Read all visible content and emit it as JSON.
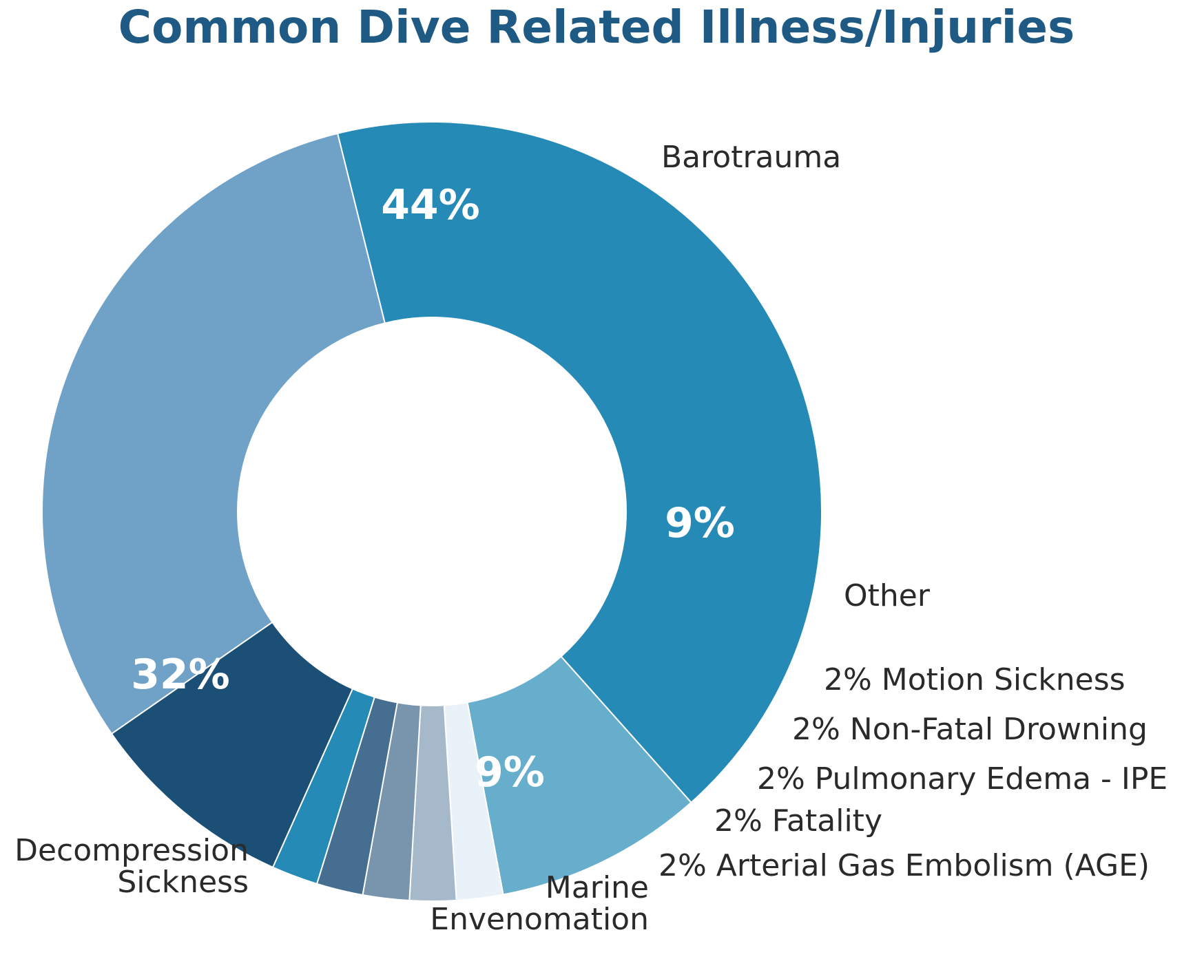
{
  "title": "Common Dive Related Illness/Injuries",
  "chart_data": {
    "type": "pie",
    "title": "Common Dive Related Illness/Injuries",
    "slices": [
      {
        "key": "barotrauma",
        "value": 44,
        "pct_label": "44%",
        "label_lines": [
          "Barotrauma"
        ],
        "color": "#258bb6"
      },
      {
        "key": "other",
        "value": 9,
        "pct_label": "9%",
        "label_lines": [
          "Other"
        ],
        "color": "#67adcc"
      },
      {
        "key": "motion-sickness",
        "value": 2,
        "pct_label": "",
        "label_lines": [
          "2% Motion Sickness"
        ],
        "color": "#e9f2f8"
      },
      {
        "key": "non-fatal-drowning",
        "value": 2,
        "pct_label": "",
        "label_lines": [
          "2% Non-Fatal Drowning"
        ],
        "color": "#a6b9ca"
      },
      {
        "key": "pulmonary-edema",
        "value": 2,
        "pct_label": "",
        "label_lines": [
          "2% Pulmonary Edema - IPE"
        ],
        "color": "#7895ad"
      },
      {
        "key": "fatality",
        "value": 2,
        "pct_label": "",
        "label_lines": [
          "2% Fatality"
        ],
        "color": "#456e90"
      },
      {
        "key": "age",
        "value": 2,
        "pct_label": "",
        "label_lines": [
          "2% Arterial Gas Embolism (AGE)"
        ],
        "color": "#258bb6"
      },
      {
        "key": "marine-envenomation",
        "value": 9,
        "pct_label": "9%",
        "label_lines": [
          "Marine",
          "Envenomation"
        ],
        "color": "#1b4f76"
      },
      {
        "key": "decompression-sickness",
        "value": 32,
        "pct_label": "32%",
        "label_lines": [
          "Decompression",
          "Sickness"
        ],
        "color": "#70a2c7"
      }
    ]
  }
}
